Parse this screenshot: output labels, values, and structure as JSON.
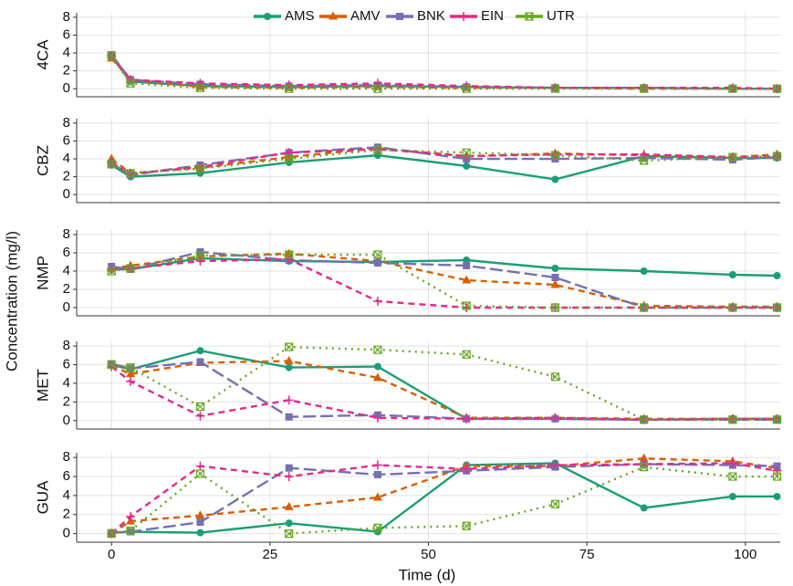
{
  "chart_data": {
    "type": "line",
    "xlabel": "Time (d)",
    "ylabel": "Concentration (mg/l)",
    "x": [
      0,
      3,
      14,
      28,
      42,
      56,
      70,
      84,
      98,
      105
    ],
    "xlim": [
      -5.5,
      105.5
    ],
    "xticks": [
      0,
      25,
      50,
      75,
      100
    ],
    "grid": true,
    "legend": "top",
    "series": [
      {
        "name": "AMS",
        "color": "#1b9e77",
        "marker": "circle",
        "dash": "solid"
      },
      {
        "name": "AMV",
        "color": "#d95f02",
        "marker": "triangle",
        "dash": "dashed"
      },
      {
        "name": "BNK",
        "color": "#7570b3",
        "marker": "square",
        "dash": "longdash"
      },
      {
        "name": "EIN",
        "color": "#e7298a",
        "marker": "plus",
        "dash": "dashed"
      },
      {
        "name": "UTR",
        "color": "#66a61e",
        "marker": "boxcross",
        "dash": "dotted"
      }
    ],
    "panels": [
      {
        "label": "4CA",
        "ylim": [
          -0.9,
          8.5
        ],
        "yticks": [
          0,
          2,
          4,
          6,
          8
        ],
        "values": [
          [
            3.6,
            0.8,
            0.3,
            0.2,
            0.3,
            0.2,
            0.1,
            0.1,
            0.0,
            0.0
          ],
          [
            3.4,
            1.0,
            0.2,
            0.1,
            0.2,
            0.1,
            0.1,
            0.0,
            0.0,
            0.0
          ],
          [
            3.8,
            1.0,
            0.5,
            0.3,
            0.4,
            0.2,
            0.1,
            0.1,
            0.0,
            0.0
          ],
          [
            3.7,
            1.0,
            0.6,
            0.4,
            0.6,
            0.3,
            0.1,
            0.1,
            0.1,
            0.0
          ],
          [
            3.7,
            0.6,
            0.1,
            0.0,
            0.0,
            0.0,
            0.0,
            0.0,
            0.0,
            0.0
          ]
        ]
      },
      {
        "label": "CBZ",
        "ylim": [
          -0.9,
          8.5
        ],
        "yticks": [
          0,
          2,
          4,
          6,
          8
        ],
        "values": [
          [
            3.3,
            2.0,
            2.4,
            3.6,
            4.4,
            3.2,
            1.7,
            4.3,
            4.1,
            4.1
          ],
          [
            4.0,
            2.4,
            3.0,
            4.2,
            5.2,
            4.3,
            4.6,
            4.4,
            4.2,
            4.5
          ],
          [
            3.5,
            2.2,
            3.3,
            4.7,
            5.3,
            4.0,
            4.0,
            4.1,
            3.9,
            4.2
          ],
          [
            3.6,
            2.3,
            3.1,
            4.7,
            5.1,
            4.3,
            4.5,
            4.5,
            4.2,
            4.3
          ],
          [
            3.4,
            2.4,
            2.9,
            4.0,
            5.0,
            4.7,
            4.4,
            3.8,
            4.2,
            4.3
          ]
        ]
      },
      {
        "label": "NMP",
        "ylim": [
          -0.9,
          8.5
        ],
        "yticks": [
          0,
          2,
          4,
          6,
          8
        ],
        "values": [
          [
            4.2,
            4.2,
            5.4,
            5.1,
            5.0,
            5.2,
            4.3,
            4.0,
            3.6,
            3.5
          ],
          [
            4.3,
            4.6,
            5.6,
            5.9,
            5.1,
            3.0,
            2.5,
            0.2,
            0.1,
            0.1
          ],
          [
            4.5,
            4.2,
            6.1,
            5.2,
            4.9,
            4.6,
            3.3,
            0.0,
            0.0,
            0.0
          ],
          [
            4.2,
            4.3,
            5.1,
            5.3,
            0.7,
            0.0,
            0.0,
            0.0,
            0.0,
            0.0
          ],
          [
            4.0,
            4.3,
            5.7,
            5.8,
            5.8,
            0.2,
            0.0,
            0.0,
            0.0,
            0.0
          ]
        ]
      },
      {
        "label": "MET",
        "ylim": [
          -0.9,
          8.5
        ],
        "yticks": [
          0,
          2,
          4,
          6,
          8
        ],
        "values": [
          [
            6.0,
            5.5,
            7.5,
            5.7,
            5.8,
            0.2,
            0.2,
            0.1,
            0.2,
            0.2
          ],
          [
            5.9,
            5.0,
            6.2,
            6.4,
            4.6,
            0.3,
            0.3,
            0.2,
            0.2,
            0.1
          ],
          [
            6.1,
            5.6,
            6.3,
            0.4,
            0.6,
            0.2,
            0.2,
            0.1,
            0.1,
            0.1
          ],
          [
            5.8,
            4.2,
            0.5,
            2.2,
            0.3,
            0.2,
            0.3,
            0.1,
            0.2,
            0.2
          ],
          [
            6.0,
            5.7,
            1.5,
            7.9,
            7.6,
            7.1,
            4.7,
            0.1,
            0.1,
            0.1
          ]
        ]
      },
      {
        "label": "GUA",
        "ylim": [
          -0.9,
          8.5
        ],
        "yticks": [
          0,
          2,
          4,
          6,
          8
        ],
        "values": [
          [
            0.1,
            0.2,
            0.1,
            1.1,
            0.2,
            7.2,
            7.4,
            2.7,
            3.9,
            3.9
          ],
          [
            0.0,
            1.3,
            1.9,
            2.8,
            3.8,
            7.1,
            7.1,
            7.9,
            7.6,
            6.9
          ],
          [
            0.1,
            0.2,
            1.2,
            6.9,
            6.2,
            6.6,
            7.0,
            7.3,
            7.2,
            7.1
          ],
          [
            0.0,
            1.8,
            7.1,
            6.0,
            7.2,
            6.8,
            7.2,
            7.3,
            7.4,
            6.6
          ],
          [
            0.0,
            0.3,
            6.3,
            0.0,
            0.6,
            0.8,
            3.1,
            7.0,
            6.0,
            6.0
          ]
        ]
      }
    ]
  }
}
